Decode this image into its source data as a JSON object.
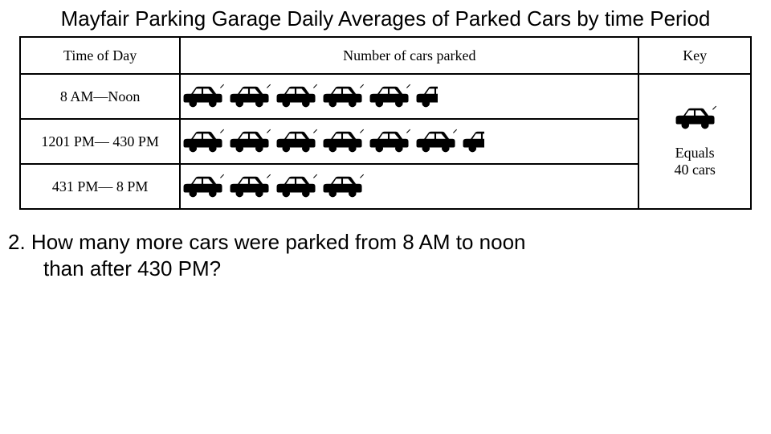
{
  "title": "Mayfair Parking Garage Daily Averages of Parked Cars by time Period",
  "headers": {
    "time": "Time of Day",
    "cars": "Number of cars parked",
    "key": "Key"
  },
  "key": {
    "icon_value": 40,
    "label_line1": "Equals",
    "label_line2": "40 cars"
  },
  "rows": [
    {
      "label": "8 AM—Noon",
      "full_icons": 5,
      "half_icons": 1
    },
    {
      "label": "1201 PM— 430 PM",
      "full_icons": 6,
      "half_icons": 1
    },
    {
      "label": "431 PM— 8 PM",
      "full_icons": 4,
      "half_icons": 0
    }
  ],
  "question": {
    "number": "2.",
    "line1": "How many more cars were parked from 8 AM to noon",
    "line2": "than after 430 PM?"
  },
  "styling": {
    "car_color": "#000000",
    "border_color": "#000000",
    "background": "#ffffff",
    "title_font": "Comic Sans MS",
    "table_font": "Times New Roman",
    "car_icon_width": 54,
    "car_icon_height": 32,
    "half_car_width": 30
  }
}
